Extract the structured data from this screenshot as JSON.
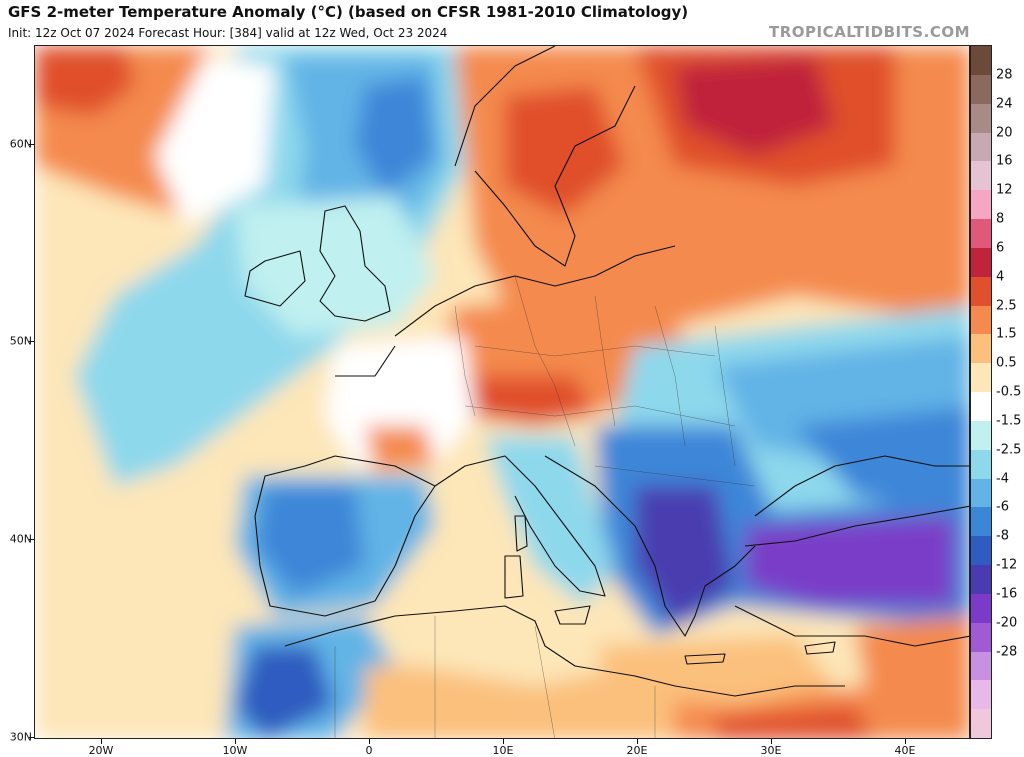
{
  "header": {
    "title": "GFS 2-meter Temperature Anomaly (°C) (based on CFSR 1981-2010 Climatology)",
    "subtitle": "Init: 12z Oct 07 2024   Forecast Hour: [384]   valid at 12z Wed, Oct 23 2024",
    "brand": "TROPICALTIDBITS.COM"
  },
  "map": {
    "latitude_labels": [
      "60N",
      "50N",
      "40N",
      "30N"
    ],
    "longitude_labels": [
      "20W",
      "10W",
      "0",
      "10E",
      "20E",
      "30E",
      "40E"
    ]
  },
  "colorbar": {
    "labels": [
      "28",
      "24",
      "20",
      "16",
      "12",
      "8",
      "6",
      "4",
      "2.5",
      "1.5",
      "0.5",
      "-0.5",
      "-1.5",
      "-2.5",
      "-4",
      "-6",
      "-8",
      "-12",
      "-16",
      "-20",
      "-28"
    ],
    "colors": [
      "#6b4a3a",
      "#8a6a5e",
      "#a88a86",
      "#c6a9b3",
      "#e6c3d2",
      "#f4a6c2",
      "#e0587a",
      "#c0243a",
      "#e0502c",
      "#f48a4e",
      "#fbc07c",
      "#fde6b8",
      "#ffffff",
      "#c0f0f0",
      "#8ed8ec",
      "#62b4e6",
      "#3c86d8",
      "#2e5cc0",
      "#4a3cb0",
      "#7a3cc8",
      "#a05ad4",
      "#c890e0",
      "#e8b8e8",
      "#f0c8dc"
    ]
  }
}
